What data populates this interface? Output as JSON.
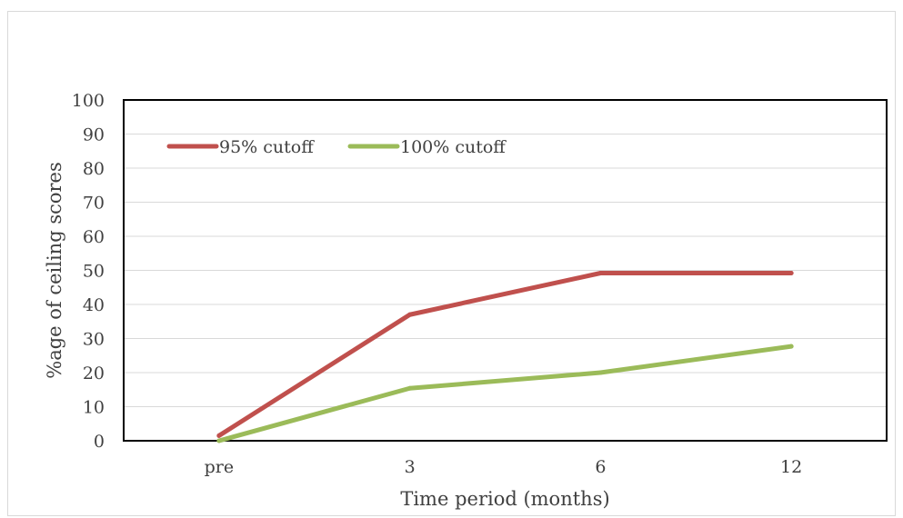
{
  "chart_data": {
    "type": "line",
    "title": "",
    "xlabel": "Time period (months)",
    "ylabel": "%age of ceiling scores",
    "categories": [
      "pre",
      "3",
      "6",
      "12"
    ],
    "ylim": [
      0,
      100
    ],
    "yticks": [
      "0",
      "10",
      "20",
      "30",
      "40",
      "50",
      "60",
      "70",
      "80",
      "90",
      "100"
    ],
    "grid": true,
    "legend_position": "top-left",
    "series": [
      {
        "name": "95% cutoff",
        "values": [
          1.5,
          37,
          49.2,
          49.2
        ],
        "color": "#c0504d"
      },
      {
        "name": "100% cutoff",
        "values": [
          0,
          15.4,
          20,
          27.7
        ],
        "color": "#9bbb59"
      }
    ]
  }
}
